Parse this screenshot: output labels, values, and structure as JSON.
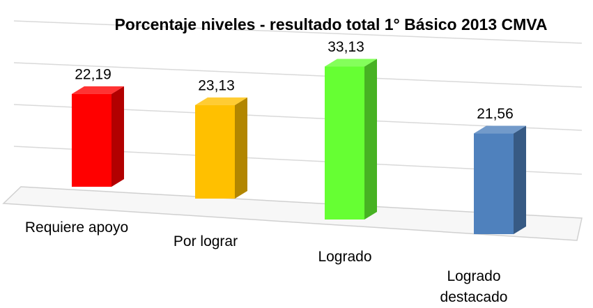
{
  "chart_data": {
    "type": "bar3d",
    "title": "Porcentaje niveles - resultado total 1° Básico 2013 CMVA",
    "categories": [
      "Requiere apoyo",
      "Por lograr",
      "Logrado",
      "Logrado destacado"
    ],
    "values": [
      22.19,
      23.13,
      33.13,
      21.56
    ],
    "value_labels": [
      "22,19",
      "23,13",
      "33,13",
      "21,56"
    ],
    "colors": [
      "#ff0000",
      "#ffc000",
      "#66ff33",
      "#4f81bd"
    ],
    "ylim": [
      0,
      40
    ]
  }
}
